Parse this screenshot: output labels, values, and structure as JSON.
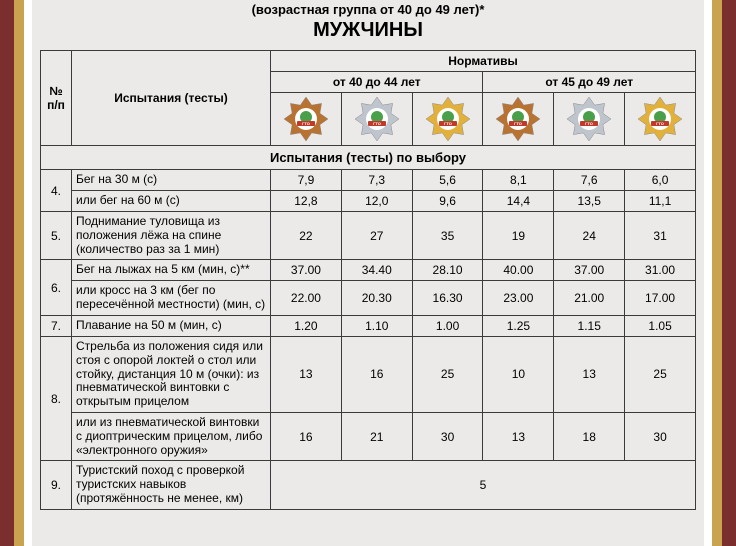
{
  "subtitle": "(возрастная группа от 40 до 49 лет)*",
  "title": "МУЖЧИНЫ",
  "colors": {
    "ribbon_outer": "#7b2e2e",
    "ribbon_inner": "#c9a34e",
    "page_bg": "#eceae8",
    "border": "#3b3b3b",
    "badge_bronze": "#b87333",
    "badge_silver": "#bfc5cc",
    "badge_gold": "#e2b13c",
    "badge_center": "#4aa04a",
    "badge_band": "#c0392b"
  },
  "header": {
    "col_num": "№ п/п",
    "col_test": "Испытания (тесты)",
    "col_norms": "Нормативы",
    "age1": "от 40 до 44 лет",
    "age2": "от 45 до 49 лет"
  },
  "section_label": "Испытания (тесты) по выбору",
  "rows": [
    {
      "num": "4.",
      "tests": [
        {
          "name": "Бег на 30 м (с)",
          "v": [
            "7,9",
            "7,3",
            "5,6",
            "8,1",
            "7,6",
            "6,0"
          ]
        },
        {
          "name": "или бег на 60 м (с)",
          "v": [
            "12,8",
            "12,0",
            "9,6",
            "14,4",
            "13,5",
            "11,1"
          ]
        }
      ]
    },
    {
      "num": "5.",
      "tests": [
        {
          "name": "Поднимание туловища из положения лёжа на спине (количество раз за 1 мин)",
          "v": [
            "22",
            "27",
            "35",
            "19",
            "24",
            "31"
          ]
        }
      ]
    },
    {
      "num": "6.",
      "tests": [
        {
          "name": "Бег на лыжах на 5 км (мин, с)**",
          "v": [
            "37.00",
            "34.40",
            "28.10",
            "40.00",
            "37.00",
            "31.00"
          ]
        },
        {
          "name": "или кросс на 3 км (бег по пересечённой местности) (мин, с)",
          "v": [
            "22.00",
            "20.30",
            "16.30",
            "23.00",
            "21.00",
            "17.00"
          ]
        }
      ]
    },
    {
      "num": "7.",
      "tests": [
        {
          "name": "Плавание на 50 м (мин, с)",
          "v": [
            "1.20",
            "1.10",
            "1.00",
            "1.25",
            "1.15",
            "1.05"
          ]
        }
      ]
    },
    {
      "num": "8.",
      "tests": [
        {
          "name": "Стрельба из положения сидя или стоя с опорой локтей о стол или стойку, дистанция 10 м (очки): из пневматической винтовки с открытым прицелом",
          "v": [
            "13",
            "16",
            "25",
            "10",
            "13",
            "25"
          ]
        },
        {
          "name": "или из пневматической винтовки с диоптрическим прицелом, либо «электронного оружия»",
          "v": [
            "16",
            "21",
            "30",
            "13",
            "18",
            "30"
          ]
        }
      ]
    },
    {
      "num": "9.",
      "tests": [
        {
          "name": "Туристский поход с проверкой туристских навыков (протяжённость не менее, км)",
          "span": true,
          "spanValue": "5"
        }
      ]
    }
  ]
}
